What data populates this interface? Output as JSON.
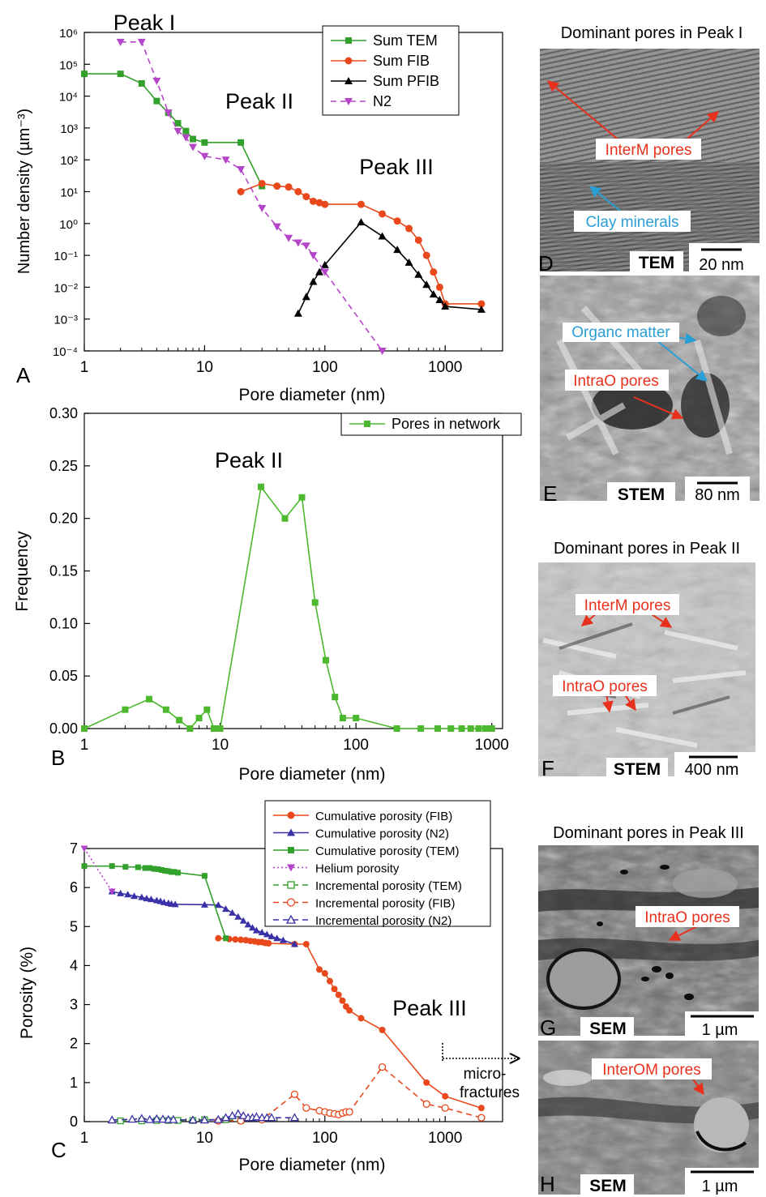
{
  "chart_data": [
    {
      "panel": "A",
      "type": "line",
      "xlabel": "Pore diameter (nm)",
      "ylabel": "Number density (µm⁻³)",
      "xscale": "log",
      "yscale": "log",
      "xlim": [
        1,
        3000
      ],
      "ylim": [
        0.0001,
        1000000
      ],
      "xticks": [
        "1",
        "10",
        "100",
        "1000"
      ],
      "yticks": [
        "10⁻⁴",
        "10⁻³",
        "10⁻²",
        "10⁻¹",
        "10⁰",
        "10¹",
        "10²",
        "10³",
        "10⁴",
        "10⁵",
        "10⁶"
      ],
      "legend_position": "top-right",
      "annotations": [
        "Peak I",
        "Peak II",
        "Peak III"
      ],
      "series": [
        {
          "name": "Sum TEM",
          "color": "#33a02c",
          "marker": "square",
          "dash": "solid",
          "x": [
            1,
            2,
            3,
            4,
            5,
            6,
            7,
            8,
            10,
            20,
            30
          ],
          "y": [
            50000,
            50000,
            25000,
            7000,
            3000,
            1400,
            800,
            450,
            350,
            350,
            15
          ]
        },
        {
          "name": "Sum FIB",
          "color": "#e8481c",
          "marker": "circle",
          "dash": "solid",
          "x": [
            20,
            30,
            40,
            50,
            60,
            70,
            80,
            90,
            100,
            200,
            300,
            400,
            500,
            600,
            700,
            800,
            900,
            1000,
            2000
          ],
          "y": [
            10,
            18,
            15,
            14,
            10,
            7,
            5,
            4.5,
            4,
            4,
            2,
            1.2,
            0.7,
            0.3,
            0.1,
            0.03,
            0.01,
            0.003,
            0.003
          ]
        },
        {
          "name": "Sum PFIB",
          "color": "#000000",
          "marker": "triangle",
          "dash": "solid",
          "x": [
            60,
            70,
            80,
            90,
            100,
            200,
            300,
            400,
            500,
            600,
            700,
            800,
            900,
            1000,
            2000
          ],
          "y": [
            0.0015,
            0.005,
            0.015,
            0.03,
            0.05,
            1.1,
            0.4,
            0.15,
            0.06,
            0.025,
            0.012,
            0.006,
            0.004,
            0.0025,
            0.002
          ]
        },
        {
          "name": "N2",
          "color": "#b545c8",
          "marker": "triangle-down",
          "dash": "dashed",
          "x": [
            2,
            3,
            4,
            5,
            6,
            7,
            8,
            10,
            15,
            20,
            30,
            40,
            50,
            60,
            70,
            80,
            100,
            300
          ],
          "y": [
            500000,
            500000,
            30000,
            3000,
            800,
            500,
            250,
            130,
            100,
            50,
            3,
            0.8,
            0.35,
            0.25,
            0.2,
            0.1,
            0.03,
            0.0001
          ]
        }
      ]
    },
    {
      "panel": "B",
      "type": "line",
      "xlabel": "Pore diameter (nm)",
      "ylabel": "Frequency",
      "xscale": "log",
      "xlim": [
        1,
        1200
      ],
      "ylim": [
        0,
        0.3
      ],
      "xticks": [
        "1",
        "10",
        "100",
        "1000"
      ],
      "yticks": [
        "0.00",
        "0.05",
        "0.10",
        "0.15",
        "0.20",
        "0.25",
        "0.30"
      ],
      "legend_position": "top-right",
      "annotations": [
        "Peak II"
      ],
      "series": [
        {
          "name": "Pores in network",
          "color": "#4cb82e",
          "marker": "square",
          "dash": "solid",
          "x": [
            1,
            2,
            3,
            4,
            5,
            6,
            7,
            8,
            9,
            10,
            20,
            30,
            40,
            50,
            60,
            70,
            80,
            100,
            200,
            300,
            400,
            500,
            600,
            700,
            800,
            900,
            1000
          ],
          "y": [
            0,
            0.018,
            0.028,
            0.018,
            0.008,
            0,
            0.01,
            0.018,
            0,
            0,
            0.23,
            0.2,
            0.22,
            0.12,
            0.065,
            0.03,
            0.01,
            0.01,
            0,
            0,
            0,
            0,
            0,
            0,
            0,
            0,
            0
          ]
        }
      ]
    },
    {
      "panel": "C",
      "type": "line",
      "xlabel": "Pore diameter (nm)",
      "ylabel": "Porosity (%)",
      "xscale": "log",
      "xlim": [
        1,
        3000
      ],
      "ylim": [
        0,
        7
      ],
      "xticks": [
        "1",
        "10",
        "100",
        "1000"
      ],
      "yticks": [
        "0",
        "1",
        "2",
        "3",
        "4",
        "5",
        "6",
        "7"
      ],
      "legend_position": "top-right",
      "annotations": [
        "Peak III",
        "micro-",
        "fractures"
      ],
      "series": [
        {
          "name": "Cumulative porosity (FIB)",
          "color": "#e8481c",
          "marker": "circle",
          "dash": "solid",
          "x": [
            13,
            16,
            18,
            20,
            22,
            24,
            26,
            28,
            30,
            32,
            34,
            56,
            70,
            90,
            100,
            110,
            120,
            130,
            140,
            150,
            160,
            200,
            300,
            700,
            1000,
            2000
          ],
          "y": [
            4.7,
            4.68,
            4.67,
            4.66,
            4.65,
            4.63,
            4.62,
            4.6,
            4.6,
            4.58,
            4.57,
            4.55,
            4.55,
            3.9,
            3.8,
            3.6,
            3.4,
            3.25,
            3.1,
            2.95,
            2.85,
            2.65,
            2.35,
            1.0,
            0.65,
            0.35
          ]
        },
        {
          "name": "Cumulative porosity (N2)",
          "color": "#3a31a8",
          "marker": "triangle",
          "dash": "solid",
          "x": [
            1.7,
            2,
            2.3,
            2.6,
            3,
            3.3,
            3.6,
            4,
            4.3,
            4.6,
            5,
            5.3,
            5.7,
            10,
            13,
            15,
            17,
            19,
            21,
            23,
            25,
            27,
            30,
            33,
            36,
            40,
            45,
            56
          ],
          "y": [
            5.9,
            5.85,
            5.82,
            5.78,
            5.75,
            5.72,
            5.7,
            5.67,
            5.65,
            5.62,
            5.6,
            5.58,
            5.57,
            5.56,
            5.55,
            5.45,
            5.35,
            5.25,
            5.15,
            5.05,
            4.97,
            4.9,
            4.85,
            4.8,
            4.75,
            4.7,
            4.65,
            4.55
          ]
        },
        {
          "name": "Cumulative porosity (TEM)",
          "color": "#33a02c",
          "marker": "square",
          "dash": "solid",
          "x": [
            1,
            1.7,
            2.2,
            2.8,
            3.2,
            3.5,
            3.8,
            4.1,
            4.4,
            4.7,
            5,
            5.3,
            5.6,
            6,
            10,
            15
          ],
          "y": [
            6.55,
            6.55,
            6.53,
            6.52,
            6.5,
            6.5,
            6.48,
            6.47,
            6.45,
            6.43,
            6.42,
            6.4,
            6.4,
            6.38,
            6.3,
            4.7
          ]
        },
        {
          "name": "Helium porosity",
          "color": "#b545c8",
          "marker": "triangle-down",
          "dash": "dotted",
          "x": [
            1,
            1.7
          ],
          "y": [
            7.0,
            5.9
          ]
        },
        {
          "name": "Incremental porosity (TEM)",
          "color": "#33a02c",
          "marker": "open-square",
          "dash": "dashed",
          "x": [
            2,
            3,
            4,
            5,
            6,
            8,
            10,
            15,
            20
          ],
          "y": [
            0.02,
            0.02,
            0.03,
            0.03,
            0.03,
            0.03,
            0.05,
            0.05,
            0.03
          ]
        },
        {
          "name": "Incremental porosity (FIB)",
          "color": "#e8481c",
          "marker": "open-circle",
          "dash": "dashed",
          "x": [
            13,
            20,
            30,
            56,
            70,
            90,
            100,
            110,
            120,
            130,
            140,
            150,
            160,
            300,
            700,
            1000,
            2000
          ],
          "y": [
            0.02,
            0.02,
            0.05,
            0.7,
            0.35,
            0.28,
            0.25,
            0.22,
            0.2,
            0.18,
            0.22,
            0.25,
            0.25,
            1.4,
            0.45,
            0.35,
            0.1
          ]
        },
        {
          "name": "Incremental porosity (N2)",
          "color": "#3a31a8",
          "marker": "open-triangle",
          "dash": "dashed",
          "x": [
            1.7,
            2.5,
            3,
            3.5,
            4,
            4.5,
            5,
            5.5,
            8,
            10,
            13,
            15,
            17,
            19,
            21,
            23,
            25,
            27,
            30,
            33,
            36,
            56
          ],
          "y": [
            0.04,
            0.06,
            0.08,
            0.05,
            0.07,
            0.06,
            0.05,
            0.05,
            0.04,
            0.04,
            0.05,
            0.1,
            0.15,
            0.2,
            0.15,
            0.1,
            0.1,
            0.12,
            0.1,
            0.1,
            0.1,
            0.1
          ]
        }
      ]
    }
  ],
  "micrographs": {
    "peak1_title": "Dominant pores in Peak I",
    "peak2_title": "Dominant pores in Peak II",
    "peak3_title": "Dominant pores in Peak III",
    "D": {
      "letter": "D",
      "tag": "TEM",
      "scale": "20 nm",
      "labels": [
        "InterM pores",
        "Clay minerals"
      ]
    },
    "E": {
      "letter": "E",
      "tag": "STEM",
      "scale": "80 nm",
      "labels": [
        "Organc matter",
        "IntraO pores"
      ]
    },
    "F": {
      "letter": "F",
      "tag": "STEM",
      "scale": "400 nm",
      "labels": [
        "InterM pores",
        "IntraO pores"
      ]
    },
    "G": {
      "letter": "G",
      "tag": "SEM",
      "scale": "1 µm",
      "labels": [
        "IntraO pores"
      ]
    },
    "H": {
      "letter": "H",
      "tag": "SEM",
      "scale": "1 µm",
      "labels": [
        "InterOM pores"
      ]
    }
  },
  "colors": {
    "red_label": "#e8311c",
    "blue_label": "#2a9fd6"
  }
}
